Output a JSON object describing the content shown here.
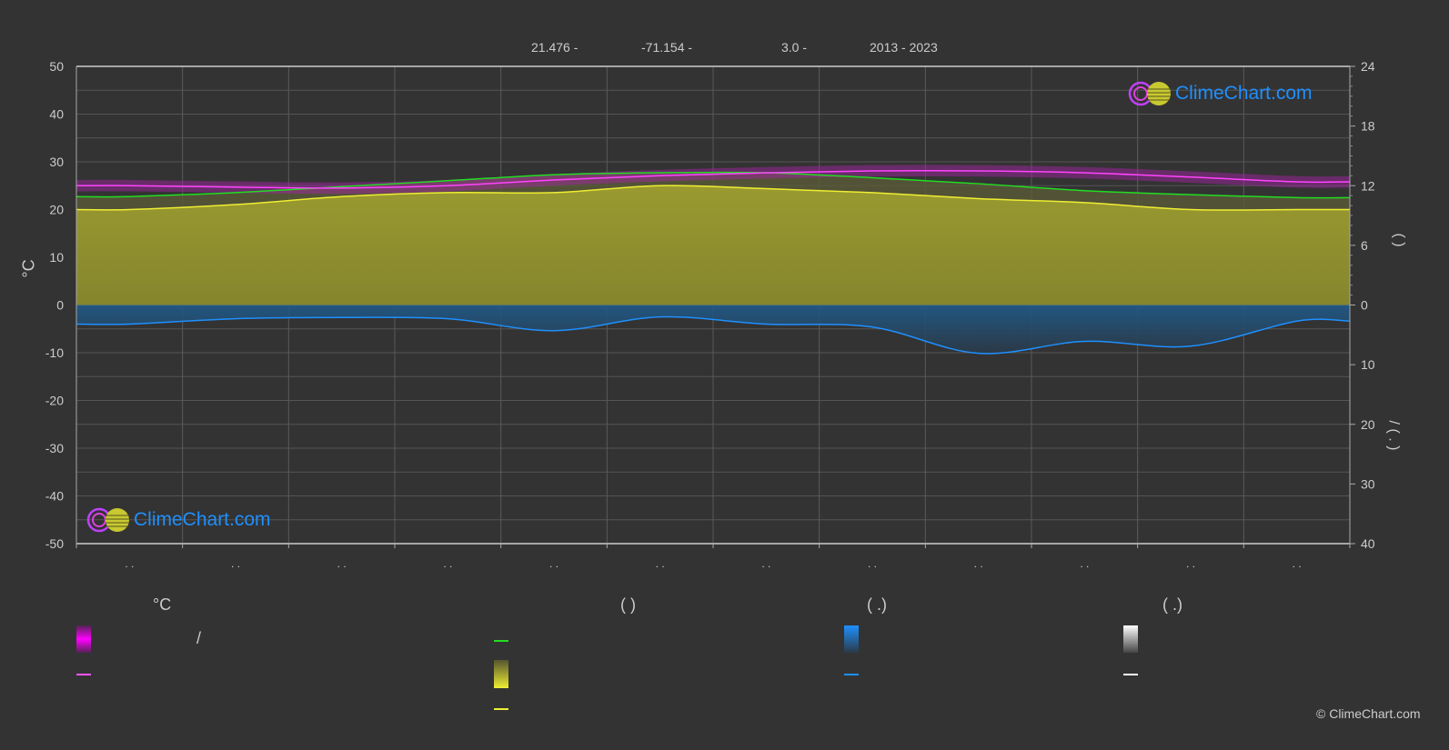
{
  "header": {
    "lat": "21.476 -",
    "lon": "-71.154 -",
    "elev": "3.0 -",
    "years": "2013 - 2023"
  },
  "logo_text": "ClimeChart.com",
  "copyright": "© ClimeChart.com",
  "left_axis_label": "°C",
  "right_axis_label_top": "(   )",
  "right_axis_label_bottom": "/  ( . )",
  "legend": {
    "col1_header": "°C",
    "col2_header": "(          )",
    "col3_header": "(   .)",
    "col4_header": "(   .)",
    "slash": "/"
  },
  "colors": {
    "temp": "#ff44ff",
    "daylight": "#22dd22",
    "sunshine": "#eeee33",
    "precip": "#1e90ff",
    "snow": "#ffffff"
  },
  "chart_data": {
    "type": "line",
    "months": [
      ". .",
      ". .",
      ". .",
      ". .",
      ". .",
      ". .",
      ". .",
      ". .",
      ". .",
      ". .",
      ". .",
      ". ."
    ],
    "left_axis": {
      "label": "°C",
      "range": [
        -50,
        50
      ],
      "ticks": [
        50,
        40,
        30,
        20,
        10,
        0,
        -10,
        -20,
        -30,
        -40,
        -50
      ]
    },
    "right_axis_top": {
      "range": [
        0,
        24
      ],
      "ticks": [
        24,
        18,
        12,
        6,
        0
      ]
    },
    "right_axis_bottom": {
      "range": [
        0,
        40
      ],
      "ticks": [
        10,
        20,
        30,
        40
      ]
    },
    "series": [
      {
        "name": "temperature",
        "axis": "left",
        "values": [
          25.0,
          24.7,
          24.5,
          25.0,
          26.2,
          27.1,
          27.7,
          28.1,
          28.1,
          27.7,
          26.8,
          25.8
        ]
      },
      {
        "name": "daylight_hours",
        "axis": "right_top",
        "values": [
          10.9,
          11.3,
          11.9,
          12.5,
          13.1,
          13.3,
          13.3,
          12.8,
          12.2,
          11.5,
          11.1,
          10.8
        ]
      },
      {
        "name": "sunshine_hours",
        "axis": "right_top",
        "values": [
          9.6,
          10.1,
          10.9,
          11.3,
          11.3,
          12.0,
          11.7,
          11.3,
          10.7,
          10.3,
          9.6,
          9.6
        ]
      },
      {
        "name": "precipitation",
        "axis": "right_bottom",
        "values": [
          3.2,
          2.3,
          2.1,
          2.3,
          4.3,
          2.0,
          3.2,
          3.7,
          8.1,
          6.1,
          6.9,
          2.7
        ]
      }
    ]
  }
}
